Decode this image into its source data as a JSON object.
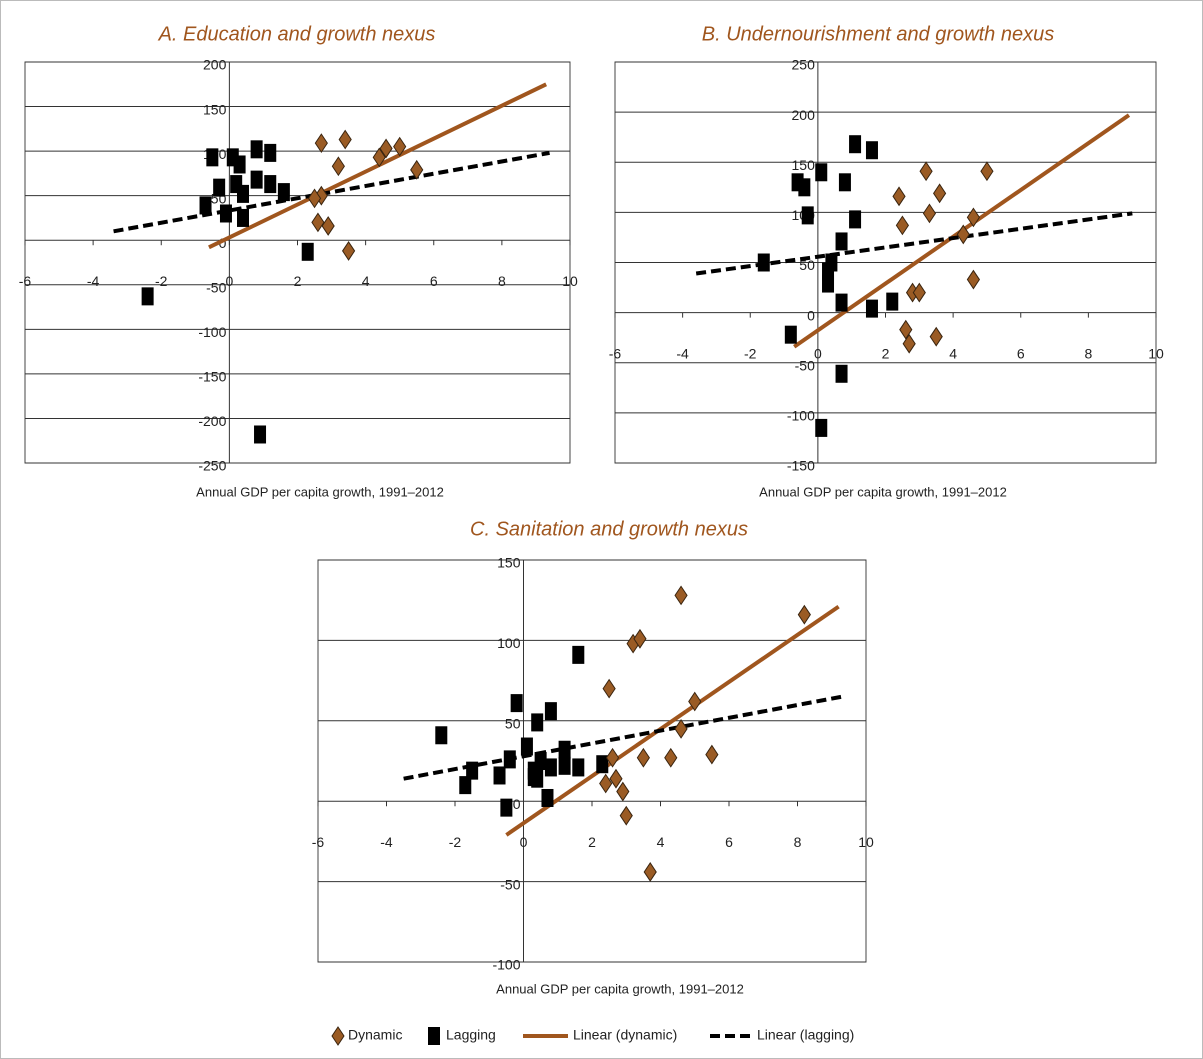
{
  "chart_data": [
    {
      "type": "scatter",
      "title": "A. Education and growth nexus",
      "x_label": "Annual GDP per capita growth, 1991–2012",
      "xlim": [
        -6,
        10
      ],
      "xticks": [
        -6,
        -4,
        -2,
        0,
        2,
        4,
        6,
        8,
        10
      ],
      "ylim": [
        -250,
        200
      ],
      "yticks": [
        -250,
        -200,
        -150,
        -100,
        -50,
        0,
        50,
        100,
        150,
        200
      ],
      "grid": true,
      "series": [
        {
          "name": "Dynamic",
          "marker": "diamond",
          "color": "#9a5b24",
          "x": [
            2.7,
            3.4,
            3.2,
            4.6,
            5.0,
            4.4,
            5.5,
            2.7,
            2.5,
            2.6,
            2.9,
            3.5
          ],
          "values": [
            109,
            113,
            83,
            103,
            105,
            93,
            79,
            50,
            47,
            20,
            16,
            -12
          ]
        },
        {
          "name": "Lagging",
          "marker": "square",
          "color": "#000000",
          "x": [
            -0.5,
            -0.3,
            -0.7,
            -0.1,
            0.1,
            0.3,
            0.2,
            0.4,
            0.4,
            0.8,
            1.2,
            1.2,
            0.8,
            1.6,
            2.3,
            -2.4,
            0.9
          ],
          "values": [
            93,
            59,
            39,
            30,
            93,
            85,
            63,
            52,
            25,
            102,
            98,
            63,
            68,
            54,
            -13,
            -63,
            -218
          ]
        },
        {
          "name": "Linear (dynamic)",
          "marker": "line",
          "color": "#a0561e",
          "x": [
            -0.6,
            9.3
          ],
          "values": [
            -8,
            175
          ]
        },
        {
          "name": "Linear (lagging)",
          "marker": "dashed",
          "color": "#000000",
          "x": [
            -3.4,
            9.4
          ],
          "values": [
            10,
            98
          ]
        }
      ]
    },
    {
      "type": "scatter",
      "title": "B. Undernourishment and growth nexus",
      "x_label": "Annual GDP per capita growth, 1991–2012",
      "xlim": [
        -6,
        10
      ],
      "xticks": [
        -6,
        -4,
        -2,
        0,
        2,
        4,
        6,
        8,
        10
      ],
      "ylim": [
        -150,
        250
      ],
      "yticks": [
        -150,
        -100,
        -50,
        0,
        50,
        100,
        150,
        200,
        250
      ],
      "grid": true,
      "series": [
        {
          "marker": "diamond",
          "color": "#9a5b24",
          "x": [
            2.4,
            3.2,
            3.6,
            3.3,
            2.5,
            5.0,
            4.3,
            4.6,
            2.8,
            3.0,
            4.6,
            2.6,
            2.7,
            3.5
          ],
          "values": [
            116,
            141,
            119,
            99,
            87,
            141,
            78,
            95,
            20,
            20,
            33,
            -17,
            -31,
            -24
          ]
        },
        {
          "marker": "square",
          "color": "#000000",
          "x": [
            -0.6,
            -0.4,
            -0.3,
            0.1,
            1.1,
            1.6,
            0.8,
            1.1,
            0.7,
            0.4,
            0.3,
            0.3,
            0.7,
            1.6,
            2.2,
            -1.6,
            -0.8,
            0.7,
            0.1
          ],
          "values": [
            130,
            125,
            97,
            140,
            168,
            162,
            130,
            93,
            71,
            50,
            41,
            29,
            10,
            4,
            11,
            50,
            -22,
            -61,
            -115
          ]
        },
        {
          "marker": "line",
          "color": "#a0561e",
          "x": [
            -0.7,
            9.2
          ],
          "values": [
            -34,
            197
          ]
        },
        {
          "marker": "dashed",
          "color": "#000000",
          "x": [
            -3.6,
            9.3
          ],
          "values": [
            39,
            99
          ]
        }
      ]
    },
    {
      "type": "scatter",
      "title": "C. Sanitation and growth nexus",
      "x_label": "Annual GDP per capita growth, 1991–2012",
      "xlim": [
        -6,
        10
      ],
      "xticks": [
        -6,
        -4,
        -2,
        0,
        2,
        4,
        6,
        8,
        10
      ],
      "ylim": [
        -100,
        150
      ],
      "yticks": [
        -100,
        -50,
        0,
        50,
        100,
        150
      ],
      "grid": true,
      "series": [
        {
          "marker": "diamond",
          "color": "#9a5b24",
          "x": [
            4.6,
            8.2,
            3.2,
            3.4,
            2.5,
            5.0,
            4.6,
            3.5,
            4.3,
            5.5,
            2.6,
            2.4,
            2.7,
            2.9,
            3.0,
            3.7
          ],
          "values": [
            128,
            116,
            98,
            101,
            70,
            62,
            45,
            27,
            27,
            29,
            27,
            11,
            14,
            6,
            -9,
            -44
          ]
        },
        {
          "marker": "square",
          "color": "#000000",
          "x": [
            -2.4,
            1.6,
            -0.2,
            0.4,
            0.8,
            0.1,
            -0.4,
            0.3,
            0.5,
            0.8,
            1.2,
            1.2,
            0.3,
            0.4,
            0.7,
            -0.7,
            -0.5,
            -1.5,
            -1.7,
            1.6,
            2.3
          ],
          "values": [
            41,
            91,
            61,
            49,
            56,
            34,
            26,
            19,
            25,
            21,
            32,
            22,
            15,
            14,
            2,
            16,
            -4,
            19,
            10,
            21,
            23
          ]
        },
        {
          "marker": "line",
          "color": "#a0561e",
          "x": [
            -0.5,
            9.2
          ],
          "values": [
            -21,
            121
          ]
        },
        {
          "marker": "dashed",
          "color": "#000000",
          "x": [
            -3.5,
            9.3
          ],
          "values": [
            14,
            65
          ]
        }
      ]
    }
  ]
}
